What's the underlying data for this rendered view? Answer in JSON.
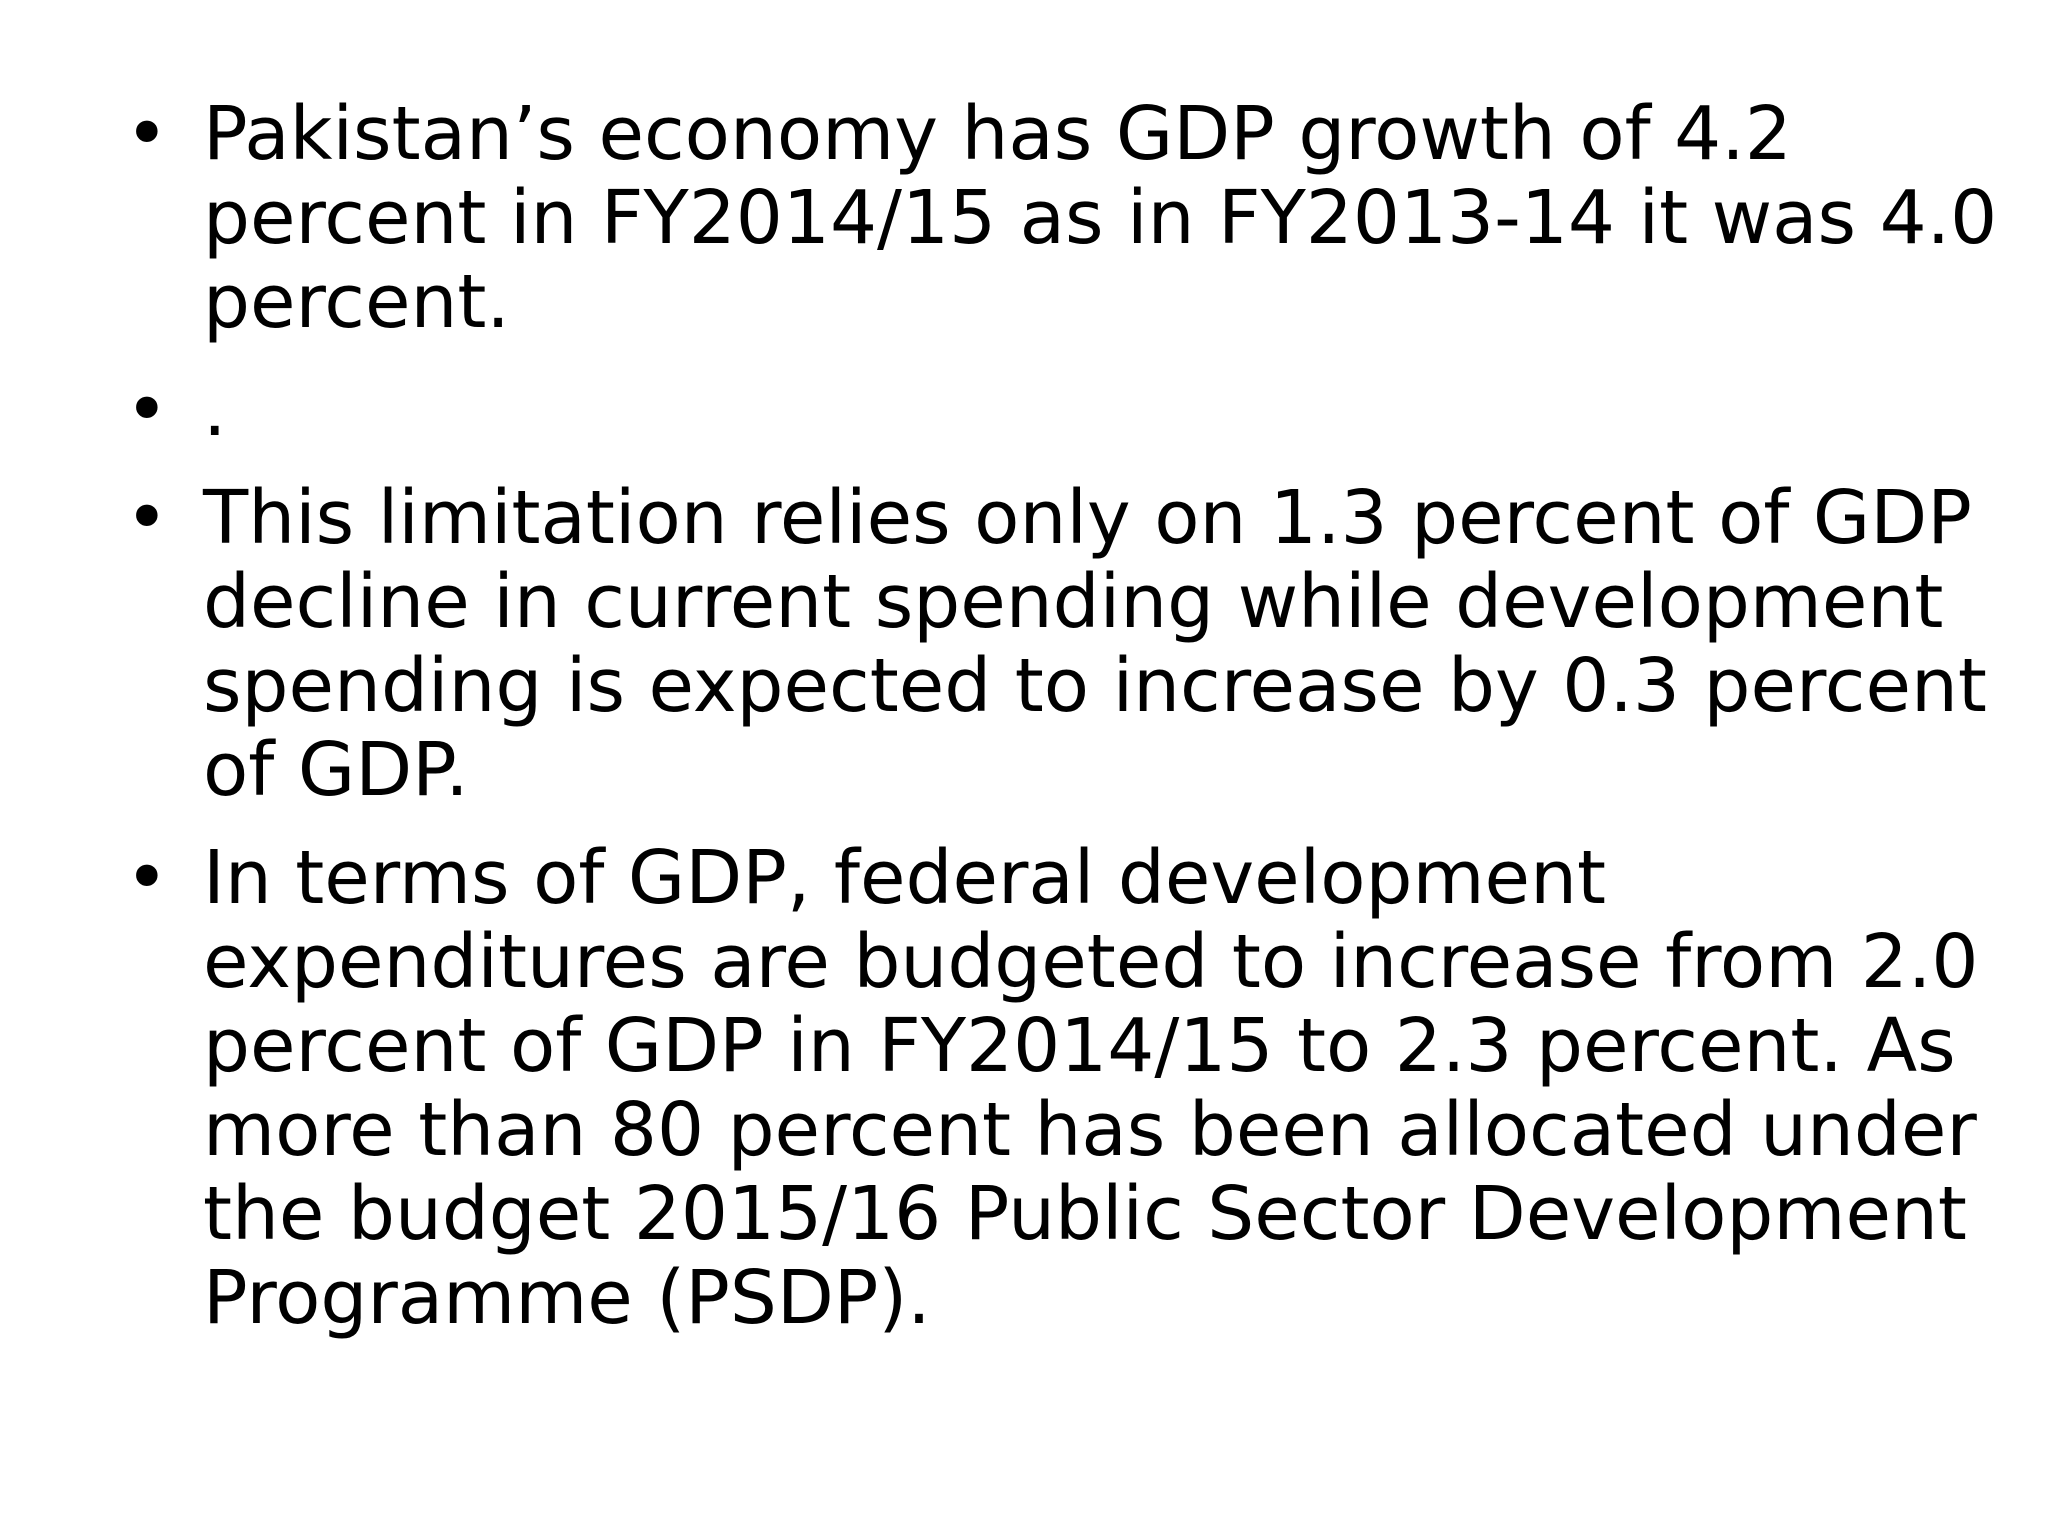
{
  "slide": {
    "bullet_glyph": "•",
    "bullets": [
      {
        "lines": [
          "Pakistan’s economy has GDP growth of 4.2",
          "percent in FY2014/15 as in FY2013-14 it was 4.0",
          "percent."
        ]
      },
      {
        "lines": [
          "."
        ]
      },
      {
        "lines": [
          "This limitation relies only on 1.3 percent of GDP",
          "decline in current spending while development",
          "spending is expected to increase by 0.3 percent",
          "of GDP."
        ]
      },
      {
        "lines": [
          "In terms of GDP, federal development",
          "expenditures are budgeted to increase from 2.0",
          "percent of GDP in FY2014/15 to 2.3 percent.  As",
          "more than 80 percent has been allocated under",
          "the budget 2015/16 Public Sector Development",
          "Programme (PSDP)."
        ]
      }
    ]
  }
}
